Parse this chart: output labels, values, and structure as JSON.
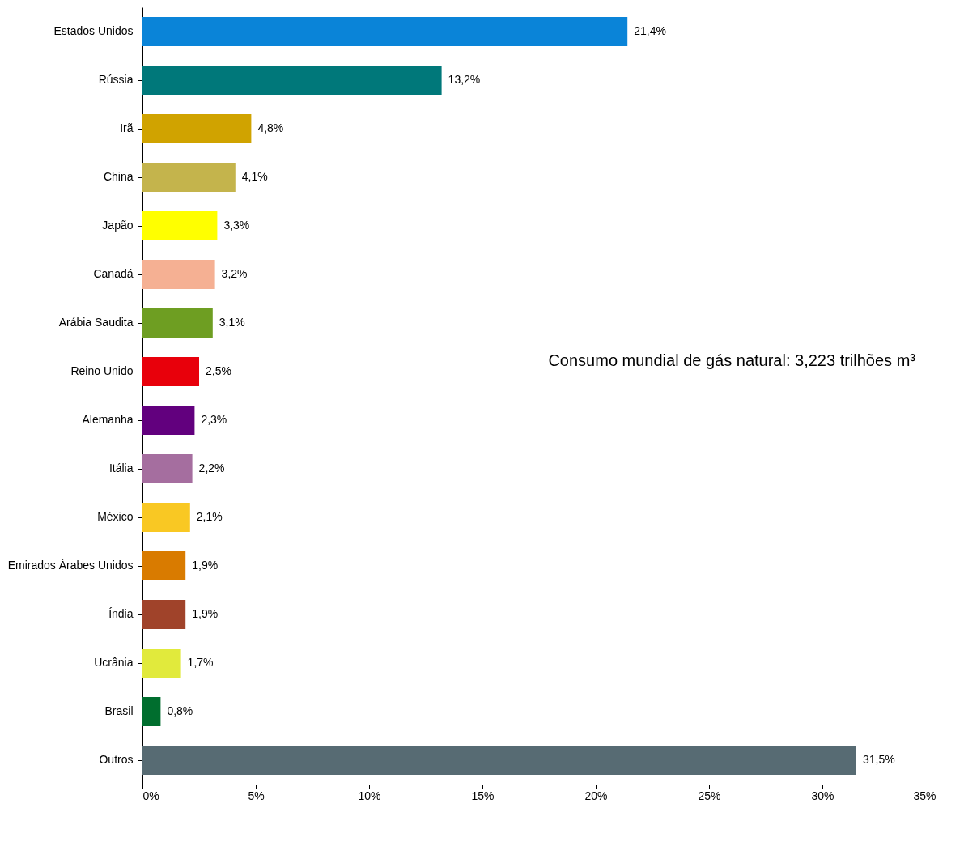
{
  "chart_data": {
    "type": "bar",
    "orientation": "horizontal",
    "categories": [
      "Estados Unidos",
      "Rússia",
      "Irã",
      "China",
      "Japão",
      "Canadá",
      "Arábia Saudita",
      "Reino Unido",
      "Alemanha",
      "Itália",
      "México",
      "Emirados Árabes Unidos",
      "Índia",
      "Ucrânia",
      "Brasil",
      "Outros"
    ],
    "values": [
      21.4,
      13.2,
      4.8,
      4.1,
      3.3,
      3.2,
      3.1,
      2.5,
      2.3,
      2.2,
      2.1,
      1.9,
      1.9,
      1.7,
      0.8,
      31.5
    ],
    "value_labels": [
      "21,4%",
      "13,2%",
      "4,8%",
      "4,1%",
      "3,3%",
      "3,2%",
      "3,1%",
      "2,5%",
      "2,3%",
      "2,2%",
      "2,1%",
      "1,9%",
      "1,9%",
      "1,7%",
      "0,8%",
      "31,5%"
    ],
    "colors": [
      "#0a84d8",
      "#00787a",
      "#d0a300",
      "#c4b44c",
      "#ffff00",
      "#f5b093",
      "#6e9e22",
      "#e8000b",
      "#62007e",
      "#a56e9f",
      "#f9c823",
      "#d97b00",
      "#a0432a",
      "#e1ea3c",
      "#006e2e",
      "#576b73"
    ],
    "xlim": [
      0,
      35
    ],
    "xticks": [
      {
        "value": 0,
        "label": "0%"
      },
      {
        "value": 5,
        "label": "5%"
      },
      {
        "value": 10,
        "label": "10%"
      },
      {
        "value": 15,
        "label": "15%"
      },
      {
        "value": 20,
        "label": "20%"
      },
      {
        "value": 25,
        "label": "25%"
      },
      {
        "value": 30,
        "label": "30%"
      },
      {
        "value": 35,
        "label": "35%"
      }
    ],
    "annotations": [
      "Consumo mundial de gás natural: 3,223 trilhões m³"
    ],
    "grid": false,
    "legend": false
  }
}
